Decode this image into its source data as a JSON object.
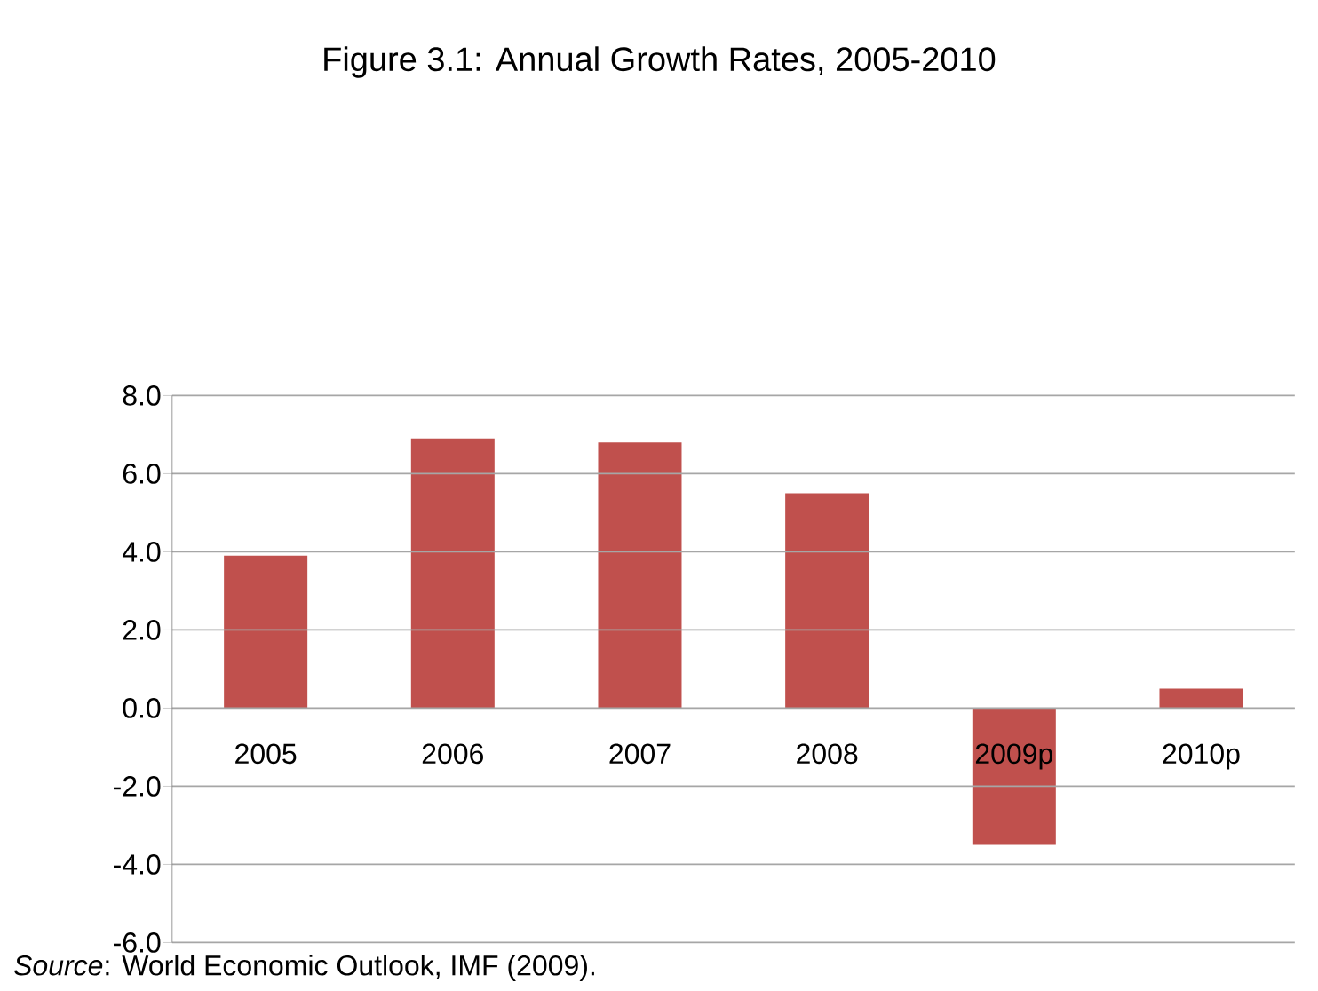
{
  "chart_data": {
    "type": "bar",
    "title": "Figure 3.1:  Annual Growth Rates, 2005-2010",
    "categories": [
      "2005",
      "2006",
      "2007",
      "2008",
      "2009p",
      "2010p"
    ],
    "values": [
      3.9,
      6.9,
      6.8,
      5.5,
      -3.5,
      0.5
    ],
    "color": "#c0504d",
    "ylim": [
      -6,
      8
    ],
    "yticks": [
      {
        "value": -6,
        "label": "-6.0"
      },
      {
        "value": -4,
        "label": "-4.0"
      },
      {
        "value": -2,
        "label": "-2.0"
      },
      {
        "value": 0,
        "label": "0.0"
      },
      {
        "value": 2,
        "label": "2.0"
      },
      {
        "value": 4,
        "label": "4.0"
      },
      {
        "value": 6,
        "label": "6.0"
      },
      {
        "value": 8,
        "label": "8.0"
      }
    ],
    "grid": "y",
    "annotations": [
      "*Source*: World Economic Outlook, IMF (2009)."
    ]
  }
}
